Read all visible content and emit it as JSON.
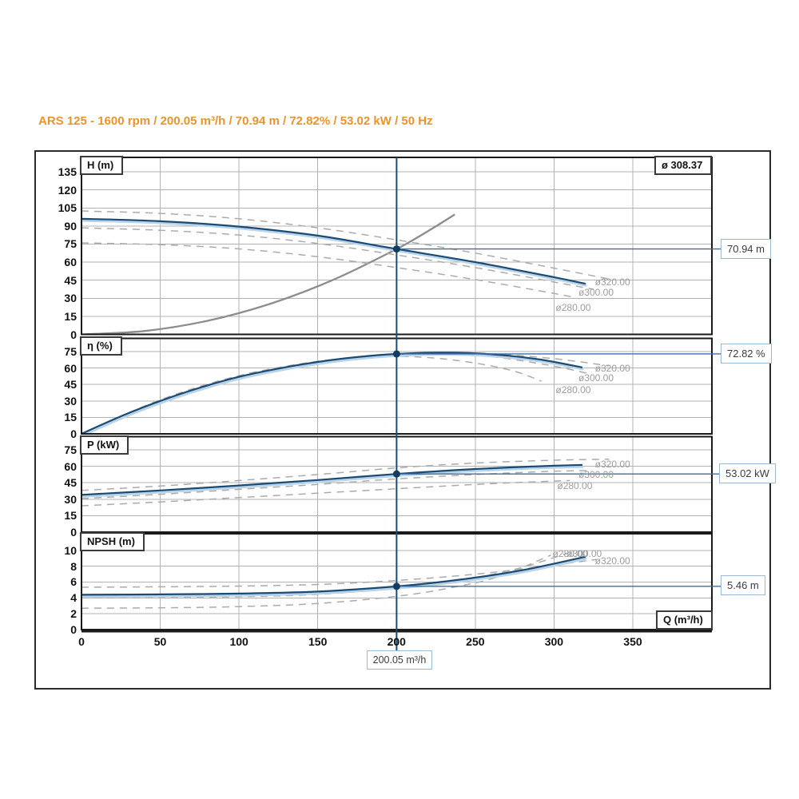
{
  "title": "ARS 125 - 1600 rpm / 200.05 m³/h / 70.94 m / 72.82% / 53.02 kW / 50 Hz",
  "impeller": {
    "label": "ø 308.37"
  },
  "xlabel": "Q (m³/h)",
  "xticks": [
    0,
    50,
    100,
    150,
    200,
    250,
    300,
    350
  ],
  "xlim": [
    0,
    400
  ],
  "duty": {
    "flow_q": 200.05,
    "flow": "200.05 m³/h",
    "head": "70.94 m",
    "efficiency": "72.82 %",
    "power": "53.02 kW",
    "npsh": "5.46 m"
  },
  "colors": {
    "title": "#E8942D",
    "curve": "#1B4A73",
    "curve_halo": "#B9D3E8",
    "dashed": "#ABABAB",
    "system": "#8C8C8C",
    "grid": "#B3B3B3",
    "border": "#1A1A1A",
    "callout_border": "#9FB9CE",
    "ref_line": "#3B6EA5",
    "diam_label": "#9C9C9C",
    "marker": "#143C63"
  },
  "chart_data": [
    {
      "type": "line",
      "panel": "H",
      "ylabel": "H (m)",
      "ylim": [
        0,
        147
      ],
      "yticks": [
        0,
        15,
        30,
        45,
        60,
        75,
        90,
        105,
        120,
        135
      ],
      "duty_point": {
        "q": 200.05,
        "v": 70.94
      },
      "series": [
        {
          "name": "system curve",
          "style": "system",
          "points": [
            [
              0,
              0
            ],
            [
              40,
              2.8
            ],
            [
              80,
              11.3
            ],
            [
              120,
              25.5
            ],
            [
              160,
              45.4
            ],
            [
              200,
              70.9
            ],
            [
              220,
              85.8
            ],
            [
              237,
              99.6
            ]
          ]
        },
        {
          "name": "ø320.00",
          "style": "dashed",
          "points": [
            [
              0,
              102.5
            ],
            [
              50,
              100.5
            ],
            [
              100,
              96
            ],
            [
              150,
              88.5
            ],
            [
              200,
              78.5
            ],
            [
              250,
              67.5
            ],
            [
              300,
              55
            ],
            [
              335,
              46
            ]
          ]
        },
        {
          "name": "ø300.00",
          "style": "dashed",
          "points": [
            [
              0,
              88.5
            ],
            [
              50,
              86.5
            ],
            [
              100,
              82.5
            ],
            [
              150,
              75.5
            ],
            [
              200,
              66
            ],
            [
              250,
              55.5
            ],
            [
              300,
              43.5
            ],
            [
              325,
              37.5
            ]
          ]
        },
        {
          "name": "ø280.00",
          "style": "dashed",
          "points": [
            [
              0,
              76
            ],
            [
              50,
              74.5
            ],
            [
              100,
              71
            ],
            [
              150,
              64.5
            ],
            [
              200,
              55.5
            ],
            [
              250,
              45.5
            ],
            [
              300,
              34
            ],
            [
              312,
              31
            ]
          ]
        },
        {
          "name": "ø 308.37",
          "style": "solid",
          "points": [
            [
              0,
              96
            ],
            [
              50,
              94
            ],
            [
              100,
              89.5
            ],
            [
              150,
              82
            ],
            [
              200,
              70.94
            ],
            [
              250,
              60
            ],
            [
              300,
              47.5
            ],
            [
              320,
              42
            ]
          ]
        }
      ],
      "diameter_labels": [
        {
          "text": "ø320.00",
          "q": 326,
          "v": 43.6
        },
        {
          "text": "ø300.00",
          "q": 315.5,
          "v": 34.9
        },
        {
          "text": "ø280.00",
          "q": 301,
          "v": 22.3
        }
      ]
    },
    {
      "type": "line",
      "panel": "eta",
      "ylabel": "η (%)",
      "ylim": [
        0,
        87
      ],
      "yticks": [
        0,
        15,
        30,
        45,
        60,
        75
      ],
      "duty_point": {
        "q": 200.05,
        "v": 72.82
      },
      "series": [
        {
          "name": "ø320.00",
          "style": "dashed",
          "points": [
            [
              0,
              0
            ],
            [
              50,
              29.5
            ],
            [
              100,
              51.5
            ],
            [
              150,
              65
            ],
            [
              200,
              72.5
            ],
            [
              230,
              74
            ],
            [
              260,
              73
            ],
            [
              300,
              68.5
            ],
            [
              335,
              62
            ]
          ]
        },
        {
          "name": "ø300.00",
          "style": "dashed",
          "points": [
            [
              0,
              0
            ],
            [
              50,
              30.5
            ],
            [
              100,
              52.5
            ],
            [
              150,
              66
            ],
            [
              200,
              72.3
            ],
            [
              230,
              73
            ],
            [
              260,
              70.5
            ],
            [
              295,
              63
            ],
            [
              322,
              55
            ]
          ]
        },
        {
          "name": "ø280.00",
          "style": "dashed",
          "points": [
            [
              0,
              0
            ],
            [
              50,
              31
            ],
            [
              100,
              53
            ],
            [
              150,
              66
            ],
            [
              190,
              70.5
            ],
            [
              220,
              69.5
            ],
            [
              250,
              64.5
            ],
            [
              275,
              57
            ],
            [
              292,
              48
            ]
          ]
        },
        {
          "name": "ø 308.37",
          "style": "solid",
          "points": [
            [
              0,
              0
            ],
            [
              25,
              16
            ],
            [
              50,
              30
            ],
            [
              75,
              42
            ],
            [
              100,
              52
            ],
            [
              125,
              59.5
            ],
            [
              150,
              65.5
            ],
            [
              175,
              70
            ],
            [
              200,
              72.82
            ],
            [
              230,
              74
            ],
            [
              260,
              72.5
            ],
            [
              290,
              68
            ],
            [
              318,
              60.5
            ]
          ]
        }
      ],
      "diameter_labels": [
        {
          "text": "ø320.00",
          "q": 326,
          "v": 60
        },
        {
          "text": "ø300.00",
          "q": 315.5,
          "v": 51
        },
        {
          "text": "ø280.00",
          "q": 301,
          "v": 40
        }
      ]
    },
    {
      "type": "line",
      "panel": "P",
      "ylabel": "P (kW)",
      "ylim": [
        0,
        87
      ],
      "yticks": [
        0,
        15,
        30,
        45,
        60,
        75
      ],
      "duty_point": {
        "q": 200.05,
        "v": 53.02
      },
      "series": [
        {
          "name": "ø320.00",
          "style": "dashed",
          "points": [
            [
              0,
              38
            ],
            [
              50,
              42
            ],
            [
              100,
              47
            ],
            [
              150,
              52.5
            ],
            [
              200,
              58.5
            ],
            [
              250,
              63
            ],
            [
              300,
              65.5
            ],
            [
              335,
              66.5
            ]
          ]
        },
        {
          "name": "ø300.00",
          "style": "dashed",
          "points": [
            [
              0,
              30.5
            ],
            [
              50,
              34.5
            ],
            [
              100,
              39
            ],
            [
              150,
              43.5
            ],
            [
              200,
              48.5
            ],
            [
              250,
              52.5
            ],
            [
              300,
              55.5
            ],
            [
              322,
              56
            ]
          ]
        },
        {
          "name": "ø280.00",
          "style": "dashed",
          "points": [
            [
              0,
              24
            ],
            [
              50,
              27.5
            ],
            [
              100,
              31.5
            ],
            [
              150,
              35.5
            ],
            [
              200,
              39.5
            ],
            [
              250,
              43.5
            ],
            [
              300,
              46.5
            ],
            [
              310,
              47
            ]
          ]
        },
        {
          "name": "ø 308.37",
          "style": "solid",
          "points": [
            [
              0,
              34
            ],
            [
              50,
              38
            ],
            [
              100,
              42.5
            ],
            [
              150,
              47.5
            ],
            [
              200,
              53.02
            ],
            [
              250,
              57.5
            ],
            [
              300,
              60.5
            ],
            [
              318,
              61.2
            ]
          ]
        }
      ],
      "diameter_labels": [
        {
          "text": "ø320.00",
          "q": 326,
          "v": 61.9
        },
        {
          "text": "ø300.00",
          "q": 315.5,
          "v": 52.4
        },
        {
          "text": "ø280.00",
          "q": 302,
          "v": 42.2
        }
      ]
    },
    {
      "type": "line",
      "panel": "NPSH",
      "ylabel": "NPSH (m)",
      "ylim": [
        0,
        12.1
      ],
      "yticks": [
        0,
        2,
        4,
        6,
        8,
        10
      ],
      "duty_point": {
        "q": 200.05,
        "v": 5.46
      },
      "series": [
        {
          "name": "ø320.00",
          "style": "dashed",
          "points": [
            [
              0,
              5.35
            ],
            [
              50,
              5.4
            ],
            [
              100,
              5.5
            ],
            [
              150,
              5.7
            ],
            [
              200,
              6.2
            ],
            [
              250,
              7.0
            ],
            [
              290,
              7.9
            ],
            [
              327,
              8.85
            ]
          ]
        },
        {
          "name": "ø300.00",
          "style": "dashed",
          "points": [
            [
              0,
              4.0
            ],
            [
              50,
              4.05
            ],
            [
              100,
              4.15
            ],
            [
              150,
              4.45
            ],
            [
              200,
              5.2
            ],
            [
              240,
              6.2
            ],
            [
              275,
              7.6
            ],
            [
              308,
              9.6
            ]
          ]
        },
        {
          "name": "ø280.00",
          "style": "dashed",
          "points": [
            [
              0,
              2.7
            ],
            [
              50,
              2.75
            ],
            [
              100,
              2.9
            ],
            [
              150,
              3.3
            ],
            [
              200,
              4.2
            ],
            [
              235,
              5.3
            ],
            [
              265,
              6.7
            ],
            [
              298,
              9.4
            ]
          ]
        },
        {
          "name": "ø 308.37",
          "style": "solid",
          "points": [
            [
              0,
              4.4
            ],
            [
              50,
              4.45
            ],
            [
              100,
              4.55
            ],
            [
              150,
              4.8
            ],
            [
              200,
              5.46
            ],
            [
              240,
              6.3
            ],
            [
              280,
              7.5
            ],
            [
              320,
              9.2
            ]
          ]
        }
      ],
      "diameter_labels": [
        {
          "text": "ø280.00",
          "q": 299,
          "v": 9.6
        },
        {
          "text": "ø300.00",
          "q": 308,
          "v": 9.6
        },
        {
          "text": "ø320.00",
          "q": 326,
          "v": 8.7
        }
      ]
    }
  ]
}
